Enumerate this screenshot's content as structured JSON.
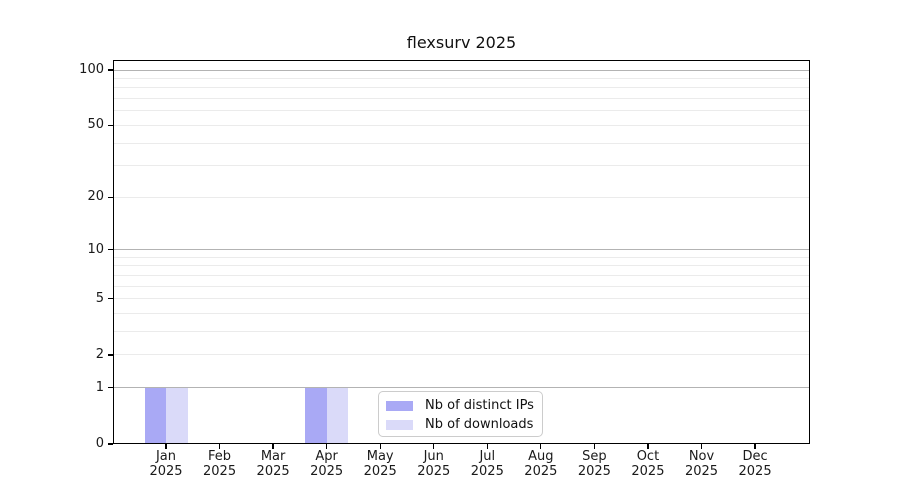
{
  "chart_data": {
    "type": "bar",
    "title": "flexsurv 2025",
    "categories": [
      "Jan\n2025",
      "Feb\n2025",
      "Mar\n2025",
      "Apr\n2025",
      "May\n2025",
      "Jun\n2025",
      "Jul\n2025",
      "Aug\n2025",
      "Sep\n2025",
      "Oct\n2025",
      "Nov\n2025",
      "Dec\n2025"
    ],
    "series": [
      {
        "name": "Nb of distinct IPs",
        "color": "#a9a9f5",
        "values": [
          1,
          0,
          0,
          1,
          0,
          0,
          0,
          0,
          0,
          0,
          0,
          0
        ]
      },
      {
        "name": "Nb of downloads",
        "color": "#dadaf9",
        "values": [
          1,
          0,
          0,
          1,
          0,
          0,
          0,
          0,
          0,
          0,
          0,
          0
        ]
      }
    ],
    "y_axis": {
      "scale": "log1p",
      "ticks": [
        0,
        1,
        2,
        5,
        10,
        20,
        50,
        100
      ],
      "max": 100,
      "major_gridlines": [
        1,
        10,
        100
      ],
      "minor_gridlines": [
        2,
        3,
        4,
        5,
        6,
        7,
        8,
        9,
        20,
        30,
        40,
        50,
        60,
        70,
        80,
        90
      ]
    },
    "legend": {
      "position": "lower center"
    },
    "colors": {
      "grid_major": "#b3b3b3",
      "grid_minor": "#ebebeb",
      "axis": "#000000",
      "text": "#1a1a1a"
    },
    "grid": true
  }
}
